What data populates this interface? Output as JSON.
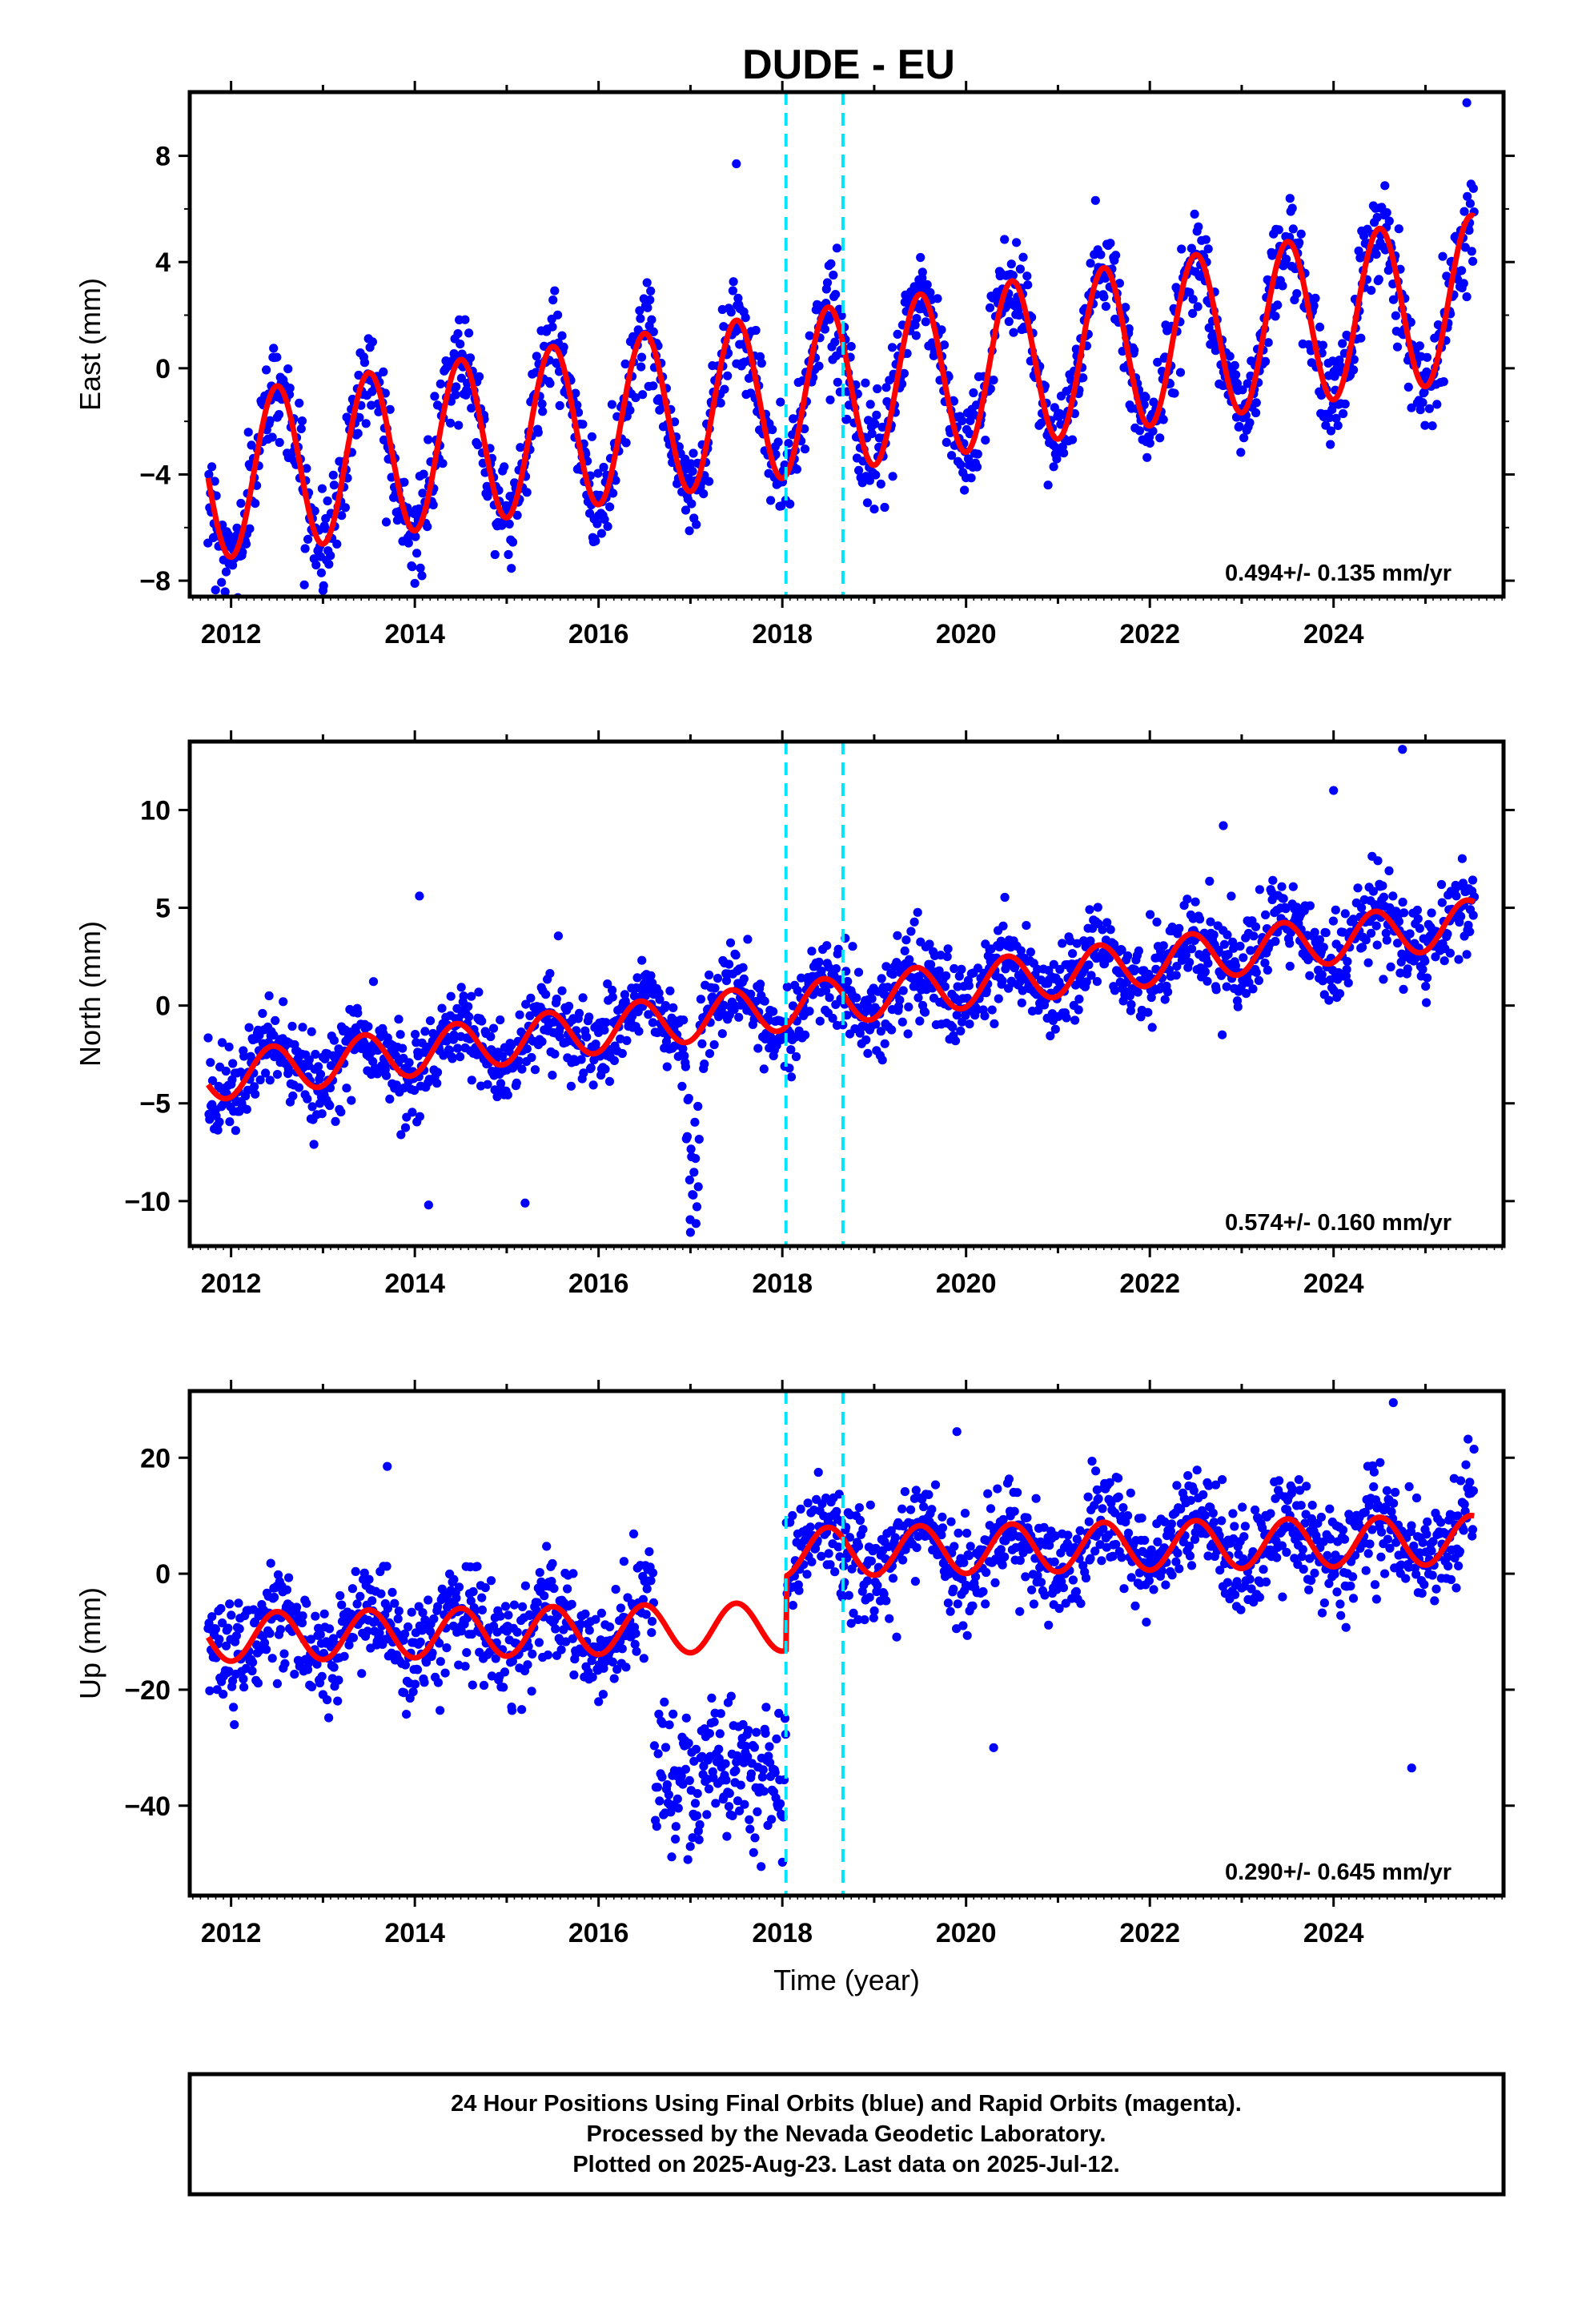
{
  "title": "DUDE - EU",
  "colors": {
    "points": "#0000ff",
    "fit": "#ff0000",
    "breaks": "#00e5ff",
    "frame": "#000000"
  },
  "footer": {
    "line1": "24 Hour Positions Using Final Orbits (blue) and Rapid Orbits (magenta).",
    "line2": "Processed by the Nevada Geodetic Laboratory.",
    "line3": "Plotted on 2025-Aug-23. Last data on 2025-Jul-12."
  },
  "chart_data": [
    {
      "type": "scatter",
      "ylabel": "East (mm)",
      "xlabel": "",
      "rate_text": "0.494+/- 0.135 mm/yr",
      "xlim": [
        2011.55,
        2025.85
      ],
      "ylim": [
        -8.6,
        10.4
      ],
      "yticks": [
        8,
        4,
        0,
        -4,
        -8
      ],
      "yticks_minor": [
        -6,
        -2,
        2,
        6
      ],
      "xticks": [
        2012,
        2014,
        2016,
        2018,
        2020,
        2022,
        2024
      ],
      "break_lines": [
        2018.04,
        2018.66
      ],
      "data_range": [
        2011.75,
        2025.53
      ],
      "trend": {
        "ref_year": 2018.5,
        "offset_mm": -0.8,
        "rate_mm_per_yr": 0.494,
        "annual_amp_mm": 3.1,
        "annual_peak_frac": 0.5
      },
      "noise_mm": 0.9,
      "outliers": [
        {
          "x": 2017.5,
          "y": 7.7
        },
        {
          "x": 2025.45,
          "y": 10.0
        },
        {
          "x": 2014.0,
          "y": -8.1
        }
      ]
    },
    {
      "type": "scatter",
      "ylabel": "North (mm)",
      "xlabel": "",
      "rate_text": "0.574+/- 0.160 mm/yr",
      "xlim": [
        2011.55,
        2025.85
      ],
      "ylim": [
        -12.3,
        13.5
      ],
      "yticks": [
        10,
        5,
        0,
        -5,
        -10
      ],
      "yticks_minor": [],
      "xticks": [
        2012,
        2014,
        2016,
        2018,
        2020,
        2022,
        2024
      ],
      "break_lines": [
        2018.04,
        2018.66
      ],
      "data_range": [
        2011.75,
        2025.53
      ],
      "trend": {
        "ref_year": 2018.5,
        "offset_mm": 0.2,
        "rate_mm_per_yr": 0.574,
        "annual_amp_mm": 1.2,
        "annual_peak_frac": 0.45
      },
      "noise_mm": 1.1,
      "outliers": [
        {
          "x": 2014.05,
          "y": 5.6
        },
        {
          "x": 2024.75,
          "y": 13.1
        },
        {
          "x": 2024.0,
          "y": 11.0
        },
        {
          "x": 2022.8,
          "y": 9.2
        },
        {
          "x": 2017.0,
          "y": -11.6
        },
        {
          "x": 2014.15,
          "y": -10.2
        },
        {
          "x": 2015.2,
          "y": -10.1
        }
      ]
    },
    {
      "type": "scatter",
      "ylabel": "Up (mm)",
      "xlabel": "Time (year)",
      "rate_text": "0.290+/- 0.645 mm/yr",
      "xlim": [
        2011.55,
        2025.85
      ],
      "ylim": [
        -55.5,
        31.5
      ],
      "yticks": [
        20,
        0,
        -20,
        -40
      ],
      "yticks_minor": [],
      "xticks": [
        2012,
        2014,
        2016,
        2018,
        2020,
        2022,
        2024
      ],
      "break_lines": [
        2018.04,
        2018.66
      ],
      "data_range": [
        2011.75,
        2025.53
      ],
      "trend": {
        "ref_year": 2018.5,
        "offset_mm": 3.8,
        "rate_mm_per_yr": 0.29,
        "annual_amp_mm": 4.2,
        "annual_peak_frac": 0.5
      },
      "noise_mm": 4.5,
      "step": {
        "year": 2018.04,
        "before_mm": -12.8
      },
      "outliers": [
        {
          "x": 2024.65,
          "y": 29.5
        },
        {
          "x": 2019.9,
          "y": 24.5
        },
        {
          "x": 2013.7,
          "y": 18.5
        },
        {
          "x": 2020.3,
          "y": -30.0
        },
        {
          "x": 2024.85,
          "y": -33.5
        }
      ]
    }
  ]
}
